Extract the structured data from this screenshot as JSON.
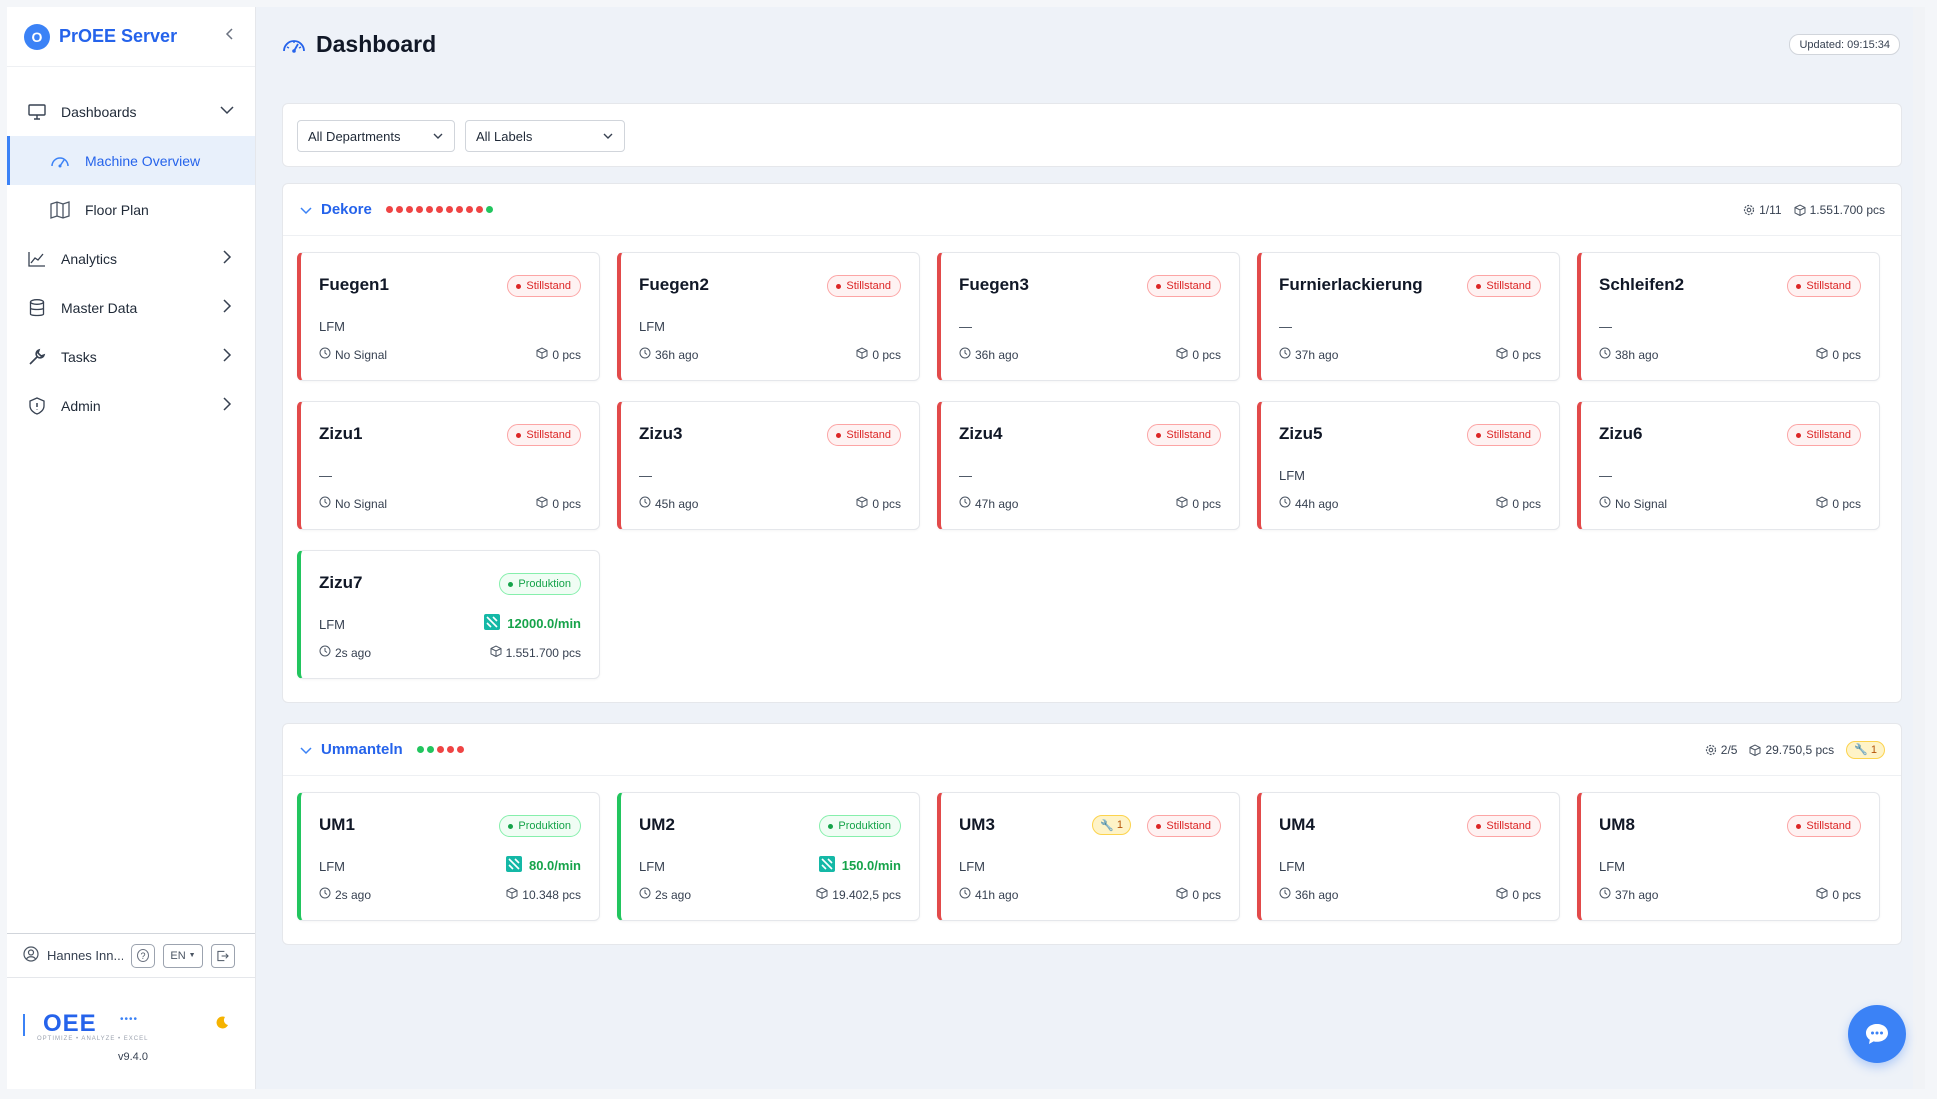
{
  "app": {
    "brand_letter": "O",
    "brand_name": "PrOEE Server"
  },
  "sidebar": {
    "items": [
      {
        "label": "Dashboards",
        "icon": "monitor-icon"
      },
      {
        "label": "Analytics",
        "icon": "chart-line-icon"
      },
      {
        "label": "Master Data",
        "icon": "database-icon"
      },
      {
        "label": "Tasks",
        "icon": "wrench-icon"
      },
      {
        "label": "Admin",
        "icon": "shield-icon"
      }
    ],
    "sub_items": [
      {
        "label": "Machine Overview",
        "icon": "gauge-icon",
        "active": true
      },
      {
        "label": "Floor Plan",
        "icon": "map-icon",
        "active": false
      }
    ],
    "user_name": "Hannes Inn...",
    "help_label": "?",
    "lang_label": "EN",
    "logo_text": "OEE",
    "logo_tagline": "OPTIMIZE • ANALYZE • EXCEL",
    "version": "v9.4.0"
  },
  "header": {
    "title": "Dashboard",
    "updated": "Updated: 09:15:34"
  },
  "filters": {
    "departments": "All Departments",
    "labels": "All Labels"
  },
  "colors": {
    "accent": "#3b82f6",
    "stop": "#ef4444",
    "production": "#22c55e",
    "warning": "#f59e0b"
  },
  "groups": [
    {
      "name": "Dekore",
      "dots": [
        "red",
        "red",
        "red",
        "red",
        "red",
        "red",
        "red",
        "red",
        "red",
        "red",
        "green"
      ],
      "running": "1/11",
      "pieces": "1.551.700 pcs",
      "machines": [
        {
          "name": "Fuegen1",
          "status": "Stillstand",
          "unit": "LFM",
          "time": "No Signal",
          "pcs": "0 pcs"
        },
        {
          "name": "Fuegen2",
          "status": "Stillstand",
          "unit": "LFM",
          "time": "36h ago",
          "pcs": "0 pcs"
        },
        {
          "name": "Fuegen3",
          "status": "Stillstand",
          "unit": "—",
          "time": "36h ago",
          "pcs": "0 pcs"
        },
        {
          "name": "Furnierlackierung",
          "status": "Stillstand",
          "unit": "—",
          "time": "37h ago",
          "pcs": "0 pcs"
        },
        {
          "name": "Schleifen2",
          "status": "Stillstand",
          "unit": "—",
          "time": "38h ago",
          "pcs": "0 pcs"
        },
        {
          "name": "Zizu1",
          "status": "Stillstand",
          "unit": "—",
          "time": "No Signal",
          "pcs": "0 pcs"
        },
        {
          "name": "Zizu3",
          "status": "Stillstand",
          "unit": "—",
          "time": "45h ago",
          "pcs": "0 pcs"
        },
        {
          "name": "Zizu4",
          "status": "Stillstand",
          "unit": "—",
          "time": "47h ago",
          "pcs": "0 pcs"
        },
        {
          "name": "Zizu5",
          "status": "Stillstand",
          "unit": "LFM",
          "time": "44h ago",
          "pcs": "0 pcs"
        },
        {
          "name": "Zizu6",
          "status": "Stillstand",
          "unit": "—",
          "time": "No Signal",
          "pcs": "0 pcs"
        },
        {
          "name": "Zizu7",
          "status": "Produktion",
          "unit": "LFM",
          "rate": "12000.0/min",
          "time": "2s ago",
          "pcs": "1.551.700 pcs"
        }
      ]
    },
    {
      "name": "Ummanteln",
      "dots": [
        "green",
        "green",
        "red",
        "red",
        "red"
      ],
      "running": "2/5",
      "pieces": "29.750,5 pcs",
      "tasks": "1",
      "machines": [
        {
          "name": "UM1",
          "status": "Produktion",
          "unit": "LFM",
          "rate": "80.0/min",
          "time": "2s ago",
          "pcs": "10.348 pcs"
        },
        {
          "name": "UM2",
          "status": "Produktion",
          "unit": "LFM",
          "rate": "150.0/min",
          "time": "2s ago",
          "pcs": "19.402,5 pcs"
        },
        {
          "name": "UM3",
          "status": "Stillstand",
          "tasks": "1",
          "unit": "LFM",
          "time": "41h ago",
          "pcs": "0 pcs"
        },
        {
          "name": "UM4",
          "status": "Stillstand",
          "unit": "LFM",
          "time": "36h ago",
          "pcs": "0 pcs"
        },
        {
          "name": "UM8",
          "status": "Stillstand",
          "unit": "LFM",
          "time": "37h ago",
          "pcs": "0 pcs"
        }
      ]
    }
  ]
}
